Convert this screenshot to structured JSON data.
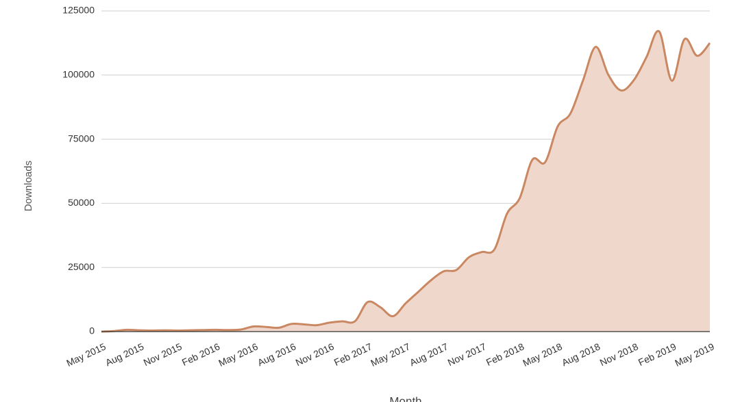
{
  "chart_data": {
    "type": "area",
    "x_label": "Month",
    "y_label": "Downloads",
    "categories": [
      "May 2015",
      null,
      null,
      "Aug 2015",
      null,
      null,
      "Nov 2015",
      null,
      null,
      "Feb 2016",
      null,
      null,
      "May 2016",
      null,
      null,
      "Aug 2016",
      null,
      null,
      "Nov 2016",
      null,
      null,
      "Feb 2017",
      null,
      null,
      "May 2017",
      null,
      null,
      "Aug 2017",
      null,
      null,
      "Nov 2017",
      null,
      null,
      "Feb 2018",
      null,
      null,
      "May 2018",
      null,
      null,
      "Aug 2018",
      null,
      null,
      "Nov 2018",
      null,
      null,
      "Feb 2019",
      null,
      null,
      "May 2019"
    ],
    "series": [
      {
        "name": "Downloads",
        "color": "#c98762",
        "fill": "#efd8cb",
        "values": [
          0,
          200,
          700,
          500,
          400,
          500,
          400,
          500,
          600,
          700,
          600,
          800,
          2000,
          1800,
          1500,
          3000,
          2800,
          2500,
          3500,
          4000,
          4000,
          11500,
          9500,
          6000,
          11000,
          15500,
          20000,
          23500,
          24000,
          29000,
          31000,
          32000,
          46000,
          52000,
          67000,
          66000,
          80000,
          85000,
          98000,
          111000,
          100000,
          94000,
          98000,
          107000,
          117000,
          97800,
          114000,
          107500,
          112500
        ]
      }
    ],
    "ylim": [
      0,
      125000
    ],
    "yticks": [
      0,
      25000,
      50000,
      75000,
      100000,
      125000
    ],
    "grid": true
  }
}
